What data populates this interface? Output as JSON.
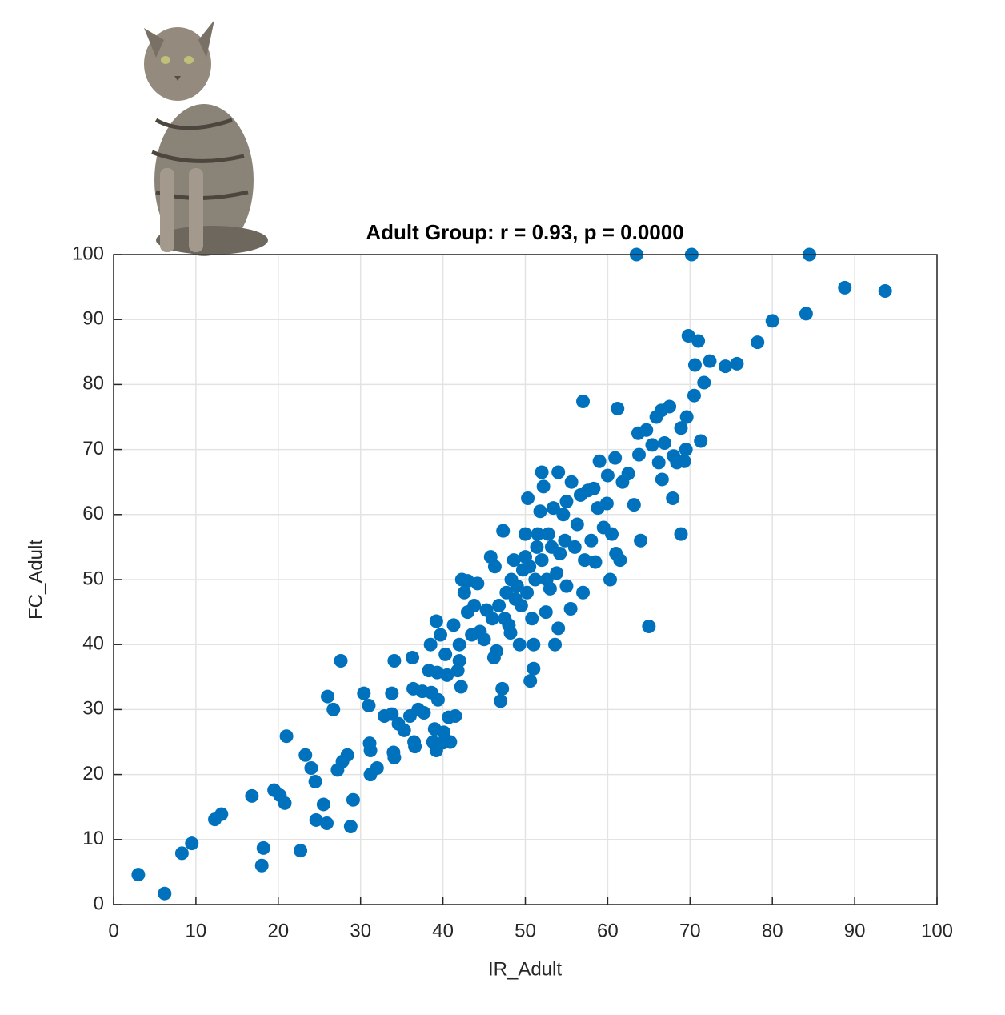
{
  "chart_data": {
    "type": "scatter",
    "title": "Adult Group: r = 0.93, p = 0.0000",
    "x_label": "IR_Adult",
    "y_label": "FC_Adult",
    "color": "#0072bd",
    "grid": true,
    "xlim": [
      0,
      100
    ],
    "ylim": [
      0,
      100
    ],
    "xticks": [
      0,
      10,
      20,
      30,
      40,
      50,
      60,
      70,
      80,
      90,
      100
    ],
    "yticks": [
      0,
      10,
      20,
      30,
      40,
      50,
      60,
      70,
      80,
      90,
      100
    ],
    "x": [
      3,
      6.2,
      8.3,
      9.5,
      12.3,
      13.1,
      16.8,
      18,
      18.2,
      19.5,
      20.2,
      20.8,
      21,
      22.7,
      23.3,
      24,
      24.5,
      24.6,
      25.5,
      25.9,
      26,
      26.7,
      27.2,
      27.6,
      27.8,
      28.4,
      28.8,
      29.1,
      30.4,
      31,
      31.1,
      31.2,
      31.2,
      32,
      32.9,
      33.8,
      33.8,
      34,
      34.1,
      34.1,
      34.6,
      35.3,
      36,
      36.3,
      36.4,
      36.5,
      36.6,
      37,
      37.5,
      37.7,
      38.3,
      38.5,
      38.6,
      38.8,
      39,
      39.2,
      39.2,
      39.3,
      39.4,
      39.7,
      40,
      40.1,
      40.3,
      40.5,
      40.7,
      40.9,
      41.3,
      41.5,
      41.8,
      42,
      42,
      42.2,
      42.3,
      42.6,
      43,
      43,
      43.5,
      43.8,
      44.2,
      44.5,
      45,
      45.3,
      45.8,
      46,
      46.2,
      46.3,
      46.5,
      46.8,
      47,
      47.2,
      47.3,
      47.5,
      47.7,
      48,
      48.2,
      48.3,
      48.6,
      48.8,
      49,
      49.3,
      49.5,
      49.7,
      50,
      50,
      50.2,
      50.3,
      50.5,
      50.6,
      50.8,
      51,
      51,
      51.2,
      51.4,
      51.5,
      51.8,
      52,
      52,
      52.2,
      52.5,
      52.6,
      52.8,
      53,
      53.2,
      53.4,
      53.6,
      53.8,
      54,
      54,
      54.2,
      54.6,
      54.8,
      55,
      55,
      55.5,
      55.6,
      56,
      56.3,
      56.7,
      57,
      57,
      57.2,
      57.6,
      58,
      58.3,
      58.5,
      58.8,
      59,
      59.5,
      59.9,
      60,
      60.3,
      60.5,
      60.9,
      61,
      61.2,
      61.5,
      61.8,
      62.5,
      63.2,
      63.5,
      63.7,
      63.8,
      64,
      64.7,
      65,
      65.4,
      65.9,
      66.2,
      66.5,
      66.6,
      66.9,
      67.5,
      67.9,
      68,
      68.4,
      68.9,
      68.9,
      69.3,
      69.5,
      69.6,
      69.8,
      70.2,
      70.5,
      70.6,
      71,
      71.3,
      71.7,
      72.4,
      74.3,
      75.7,
      78.2,
      80,
      84.1,
      84.5,
      88.8,
      93.7
    ],
    "y": [
      4.6,
      1.7,
      7.9,
      9.4,
      13.1,
      13.9,
      16.7,
      6,
      8.7,
      17.6,
      16.8,
      15.6,
      25.9,
      8.3,
      23,
      21,
      18.9,
      13,
      15.4,
      12.5,
      32,
      30,
      20.7,
      37.5,
      22,
      23,
      12,
      16.1,
      32.5,
      30.6,
      24.8,
      23.7,
      20,
      21,
      29,
      29.3,
      32.5,
      23.4,
      22.6,
      37.5,
      27.8,
      26.8,
      29,
      38,
      33.2,
      25,
      24.3,
      30,
      32.8,
      29.5,
      36,
      40,
      32.6,
      25,
      27,
      43.6,
      23.7,
      35.7,
      31.5,
      41.5,
      24.9,
      26.5,
      38.5,
      35.3,
      28.8,
      25,
      43,
      29,
      36,
      37.5,
      40,
      33.5,
      50,
      48,
      49.8,
      45,
      41.5,
      46,
      49.4,
      42,
      40.8,
      45.3,
      53.5,
      44,
      38,
      52,
      39,
      46,
      31.3,
      33.2,
      57.5,
      44,
      48,
      43,
      41.8,
      50,
      53,
      47,
      49,
      40,
      46,
      51.5,
      57,
      53.5,
      48,
      62.5,
      52,
      34.4,
      44,
      36.3,
      40,
      50,
      55,
      57,
      60.5,
      66.5,
      53,
      64.3,
      45,
      50,
      57,
      48.6,
      55,
      61,
      40,
      51,
      66.5,
      42.5,
      54,
      60,
      56,
      49,
      62,
      45.5,
      65,
      55,
      58.5,
      63,
      48,
      77.4,
      53,
      63.7,
      56,
      64,
      52.7,
      61,
      68.2,
      58,
      61.7,
      66,
      50,
      57,
      68.7,
      54,
      76.3,
      53,
      65,
      66.3,
      61.5,
      100,
      72.5,
      69.2,
      56,
      73,
      42.8,
      70.7,
      75,
      68,
      76,
      65.4,
      71,
      76.6,
      62.5,
      69,
      68,
      57,
      73.3,
      68.2,
      70,
      75,
      87.5,
      100,
      78.3,
      83,
      86.7,
      71.3,
      80.3,
      83.6,
      82.8,
      83.2,
      86.5,
      89.8,
      90.9,
      100,
      94.9,
      94.4
    ]
  }
}
